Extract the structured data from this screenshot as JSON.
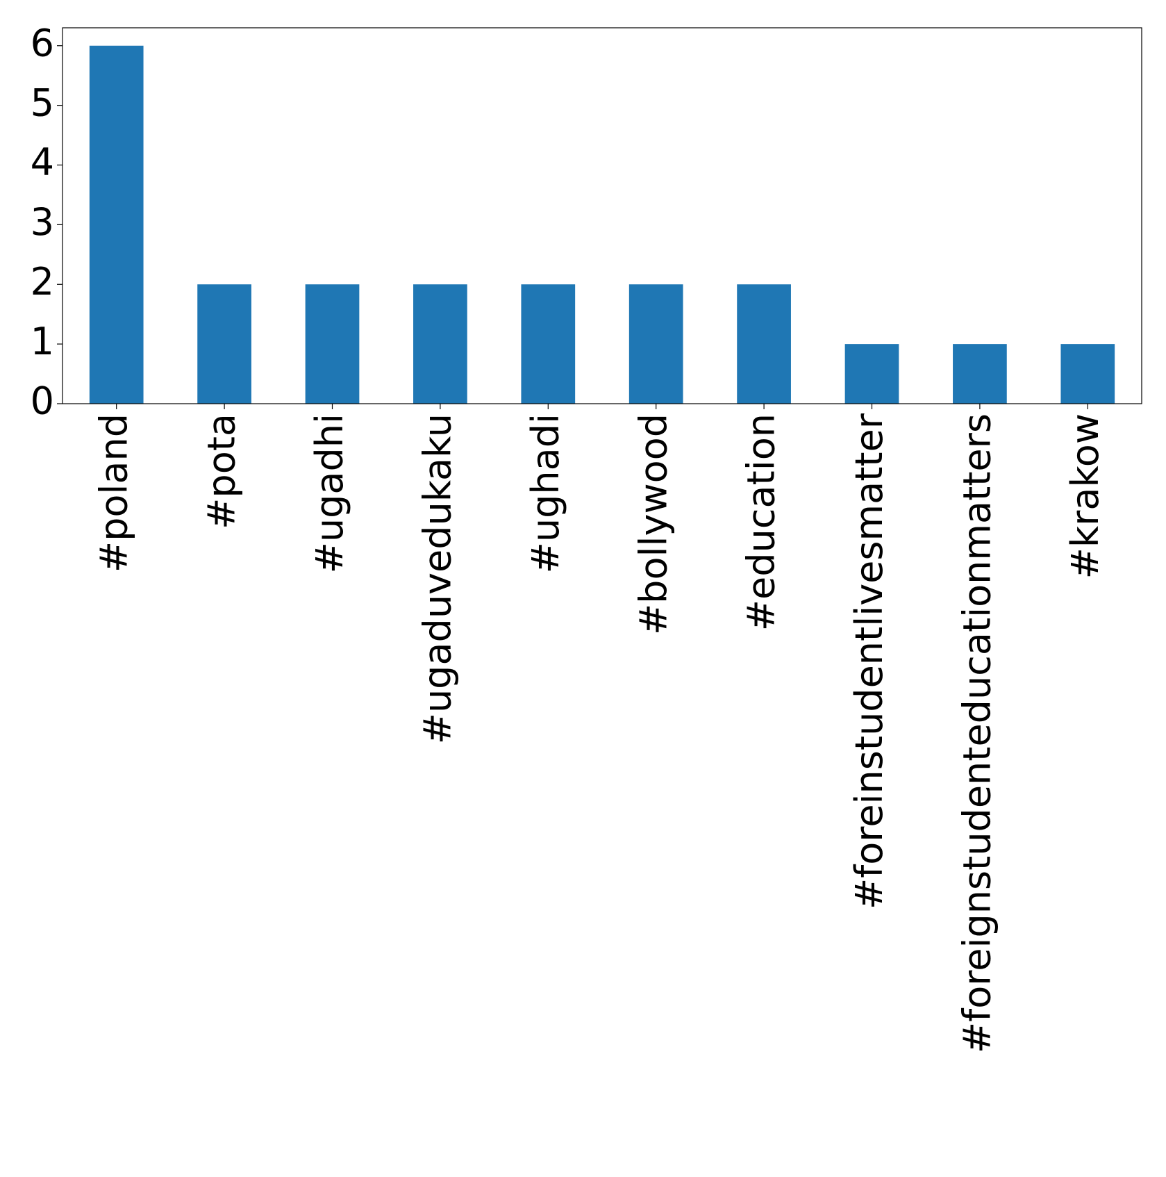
{
  "chart_data": {
    "type": "bar",
    "categories": [
      "#poland",
      "#pota",
      "#ugadhi",
      "#ugaduvedukaku",
      "#ughadi",
      "#bollywood",
      "#education",
      "#foreinstudentlivesmatter",
      "#foreignstudenteducationmatters",
      "#krakow"
    ],
    "values": [
      6,
      2,
      2,
      2,
      2,
      2,
      2,
      1,
      1,
      1
    ],
    "color": "#1f77b4",
    "ylim": [
      0,
      6.3
    ],
    "yticks": [
      0,
      1,
      2,
      3,
      4,
      5,
      6
    ],
    "grid": false
  }
}
